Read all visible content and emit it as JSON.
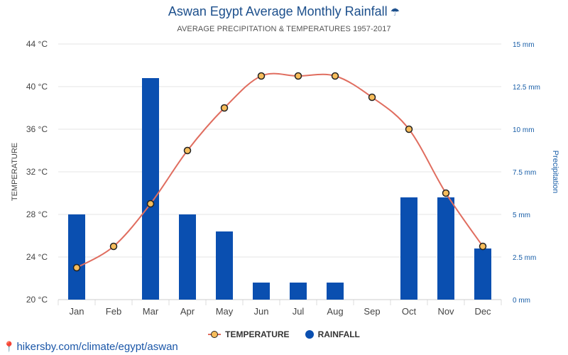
{
  "header": {
    "title": "Aswan Egypt Average Monthly Rainfall",
    "title_icon": "umbrella-icon",
    "subtitle": "AVERAGE PRECIPITATION & TEMPERATURES 1957-2017"
  },
  "chart_data": {
    "type": "bar",
    "categories": [
      "Jan",
      "Feb",
      "Mar",
      "Apr",
      "May",
      "Jun",
      "Jul",
      "Aug",
      "Sep",
      "Oct",
      "Nov",
      "Dec"
    ],
    "y_left": {
      "label": "TEMPERATURE",
      "ticks": [
        "20 °C",
        "24 °C",
        "28 °C",
        "32 °C",
        "36 °C",
        "40 °C",
        "44 °C"
      ],
      "min": 20,
      "max": 44
    },
    "y_right": {
      "label": "Precipitation",
      "ticks": [
        "0 mm",
        "2.5 mm",
        "5 mm",
        "7.5 mm",
        "10 mm",
        "12.5 mm",
        "15 mm"
      ],
      "min": 0,
      "max": 15
    },
    "series": [
      {
        "name": "TEMPERATURE",
        "type": "line",
        "axis": "left",
        "color": "#e06d5f",
        "marker_color": "#f7bd5b",
        "values": [
          23,
          25,
          29,
          34,
          38,
          41,
          41,
          41,
          39,
          36,
          30,
          25
        ]
      },
      {
        "name": "RAINFALL",
        "type": "bar",
        "axis": "right",
        "color": "#0a4fb0",
        "values": [
          5,
          0,
          13,
          5,
          4,
          1,
          1,
          1,
          0,
          6,
          6,
          3
        ]
      }
    ],
    "grid": true,
    "legend_position": "bottom"
  },
  "footer": {
    "source_text": "hikersby.com/climate/egypt/aswan",
    "source_icon": "map-pin-icon"
  }
}
